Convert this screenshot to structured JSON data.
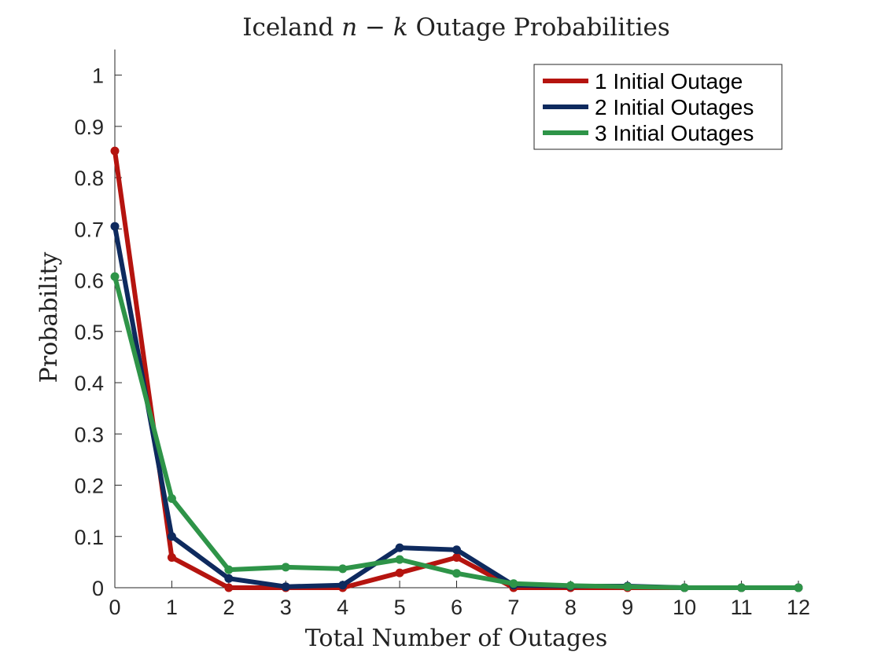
{
  "chart_data": {
    "type": "line",
    "title_prefix": "Iceland ",
    "title_math": "n − k",
    "title_suffix": " Outage Probabilities",
    "xlabel": "Total Number of Outages",
    "ylabel": "Probability",
    "x": [
      0,
      1,
      2,
      3,
      4,
      5,
      6,
      7,
      8,
      9,
      10,
      11,
      12
    ],
    "xlim": [
      0,
      12
    ],
    "ylim": [
      0,
      1.05
    ],
    "xticks": [
      "0",
      "1",
      "2",
      "3",
      "4",
      "5",
      "6",
      "7",
      "8",
      "9",
      "10",
      "11",
      "12"
    ],
    "yticks": [
      "0",
      "0.1",
      "0.2",
      "0.3",
      "0.4",
      "0.5",
      "0.6",
      "0.7",
      "0.8",
      "0.9",
      "1"
    ],
    "ytick_values": [
      0,
      0.1,
      0.2,
      0.3,
      0.4,
      0.5,
      0.6,
      0.7,
      0.8,
      0.9,
      1
    ],
    "grid": false,
    "legend_position": "top-right",
    "series": [
      {
        "name": "1 Initial Outage",
        "color": "#b5140f",
        "values": [
          0.852,
          0.059,
          0.0,
          0.0,
          0.0,
          0.029,
          0.059,
          0.0,
          0.0,
          0.0,
          0.0,
          0.0,
          0.0
        ]
      },
      {
        "name": "2 Initial Outages",
        "color": "#0e2a5e",
        "values": [
          0.705,
          0.1,
          0.018,
          0.002,
          0.005,
          0.078,
          0.074,
          0.005,
          0.003,
          0.003,
          0.0,
          0.0,
          0.0
        ]
      },
      {
        "name": "3 Initial Outages",
        "color": "#2e9448",
        "values": [
          0.607,
          0.174,
          0.035,
          0.04,
          0.037,
          0.055,
          0.028,
          0.008,
          0.004,
          0.002,
          0.0,
          0.0,
          0.0
        ]
      }
    ]
  }
}
